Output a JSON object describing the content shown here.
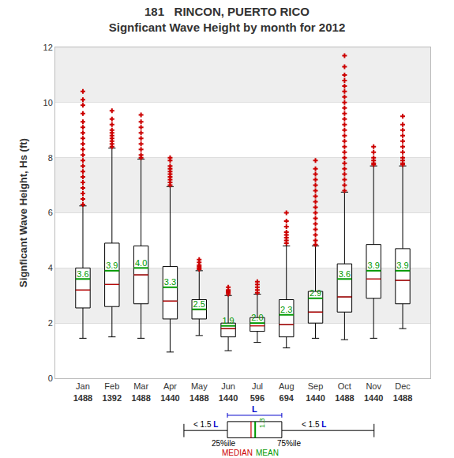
{
  "chart_data": {
    "type": "box",
    "title": "181   RINCON, PUERTO RICO",
    "subtitle": "Signficant Wave Height by month for 2012",
    "ylabel": "Signficant Wave Height, Hs (ft)",
    "categories": [
      "Jan",
      "Feb",
      "Mar",
      "Apr",
      "May",
      "Jun",
      "Jul",
      "Aug",
      "Sep",
      "Oct",
      "Nov",
      "Dec"
    ],
    "counts": [
      1488,
      1392,
      1488,
      1440,
      1488,
      1440,
      596,
      694,
      1440,
      1488,
      1440,
      1488
    ],
    "boxes": {
      "whisker_low": [
        1.45,
        1.5,
        1.45,
        0.95,
        1.55,
        1.0,
        1.3,
        1.1,
        1.45,
        1.4,
        1.45,
        1.8
      ],
      "q1": [
        2.55,
        2.6,
        2.7,
        2.15,
        2.15,
        1.5,
        1.7,
        1.5,
        2.0,
        2.4,
        2.9,
        2.7
      ],
      "median": [
        3.2,
        3.4,
        3.75,
        2.8,
        2.5,
        1.8,
        1.9,
        1.95,
        2.4,
        2.95,
        3.6,
        3.55
      ],
      "q3": [
        4.0,
        4.9,
        4.8,
        4.05,
        2.85,
        2.0,
        2.2,
        2.85,
        3.15,
        4.15,
        4.85,
        4.7
      ],
      "whisker_high": [
        6.25,
        8.35,
        7.95,
        6.95,
        3.9,
        3.0,
        3.05,
        4.8,
        4.8,
        6.75,
        7.7,
        7.7
      ],
      "mean": [
        3.6,
        3.9,
        4.0,
        3.3,
        2.5,
        1.9,
        2.0,
        2.3,
        2.9,
        3.6,
        3.9,
        3.9
      ],
      "value_labels": [
        "3.6",
        "3.9",
        "4.0",
        "3.3",
        "2.5",
        "1.9",
        "2.0",
        "2.3",
        "2.9",
        "3.6",
        "3.9",
        "3.9"
      ]
    },
    "outliers": [
      [
        6.3,
        6.5,
        6.7,
        6.9,
        7.1,
        7.3,
        7.5,
        7.7,
        7.9,
        8.1,
        8.3,
        8.5,
        8.7,
        8.9,
        9.1,
        9.3,
        9.6,
        9.9,
        10.1,
        10.4
      ],
      [
        8.4,
        8.5,
        8.6,
        8.7,
        8.8,
        8.9,
        9.0,
        9.2,
        9.4,
        9.7
      ],
      [
        8.0,
        8.1,
        8.3,
        8.5,
        8.7,
        8.9,
        9.1,
        9.3,
        9.55
      ],
      [
        7.0,
        7.1,
        7.2,
        7.3,
        7.4,
        7.5,
        7.6,
        7.7,
        7.9,
        8.0
      ],
      [
        3.95,
        4.0,
        4.05,
        4.1,
        4.2,
        4.3
      ],
      [
        3.05,
        3.1,
        3.15,
        3.2,
        3.3
      ],
      [
        3.1,
        3.2,
        3.3,
        3.4,
        3.5
      ],
      [
        4.9,
        5.0,
        5.1,
        5.2,
        5.3,
        5.5,
        5.7,
        6.0
      ],
      [
        4.85,
        5.0,
        5.2,
        5.4,
        5.6,
        5.8,
        6.0,
        6.2,
        6.4,
        6.6,
        6.8,
        7.0,
        7.2,
        7.4,
        7.6,
        7.9
      ],
      [
        6.8,
        7.0,
        7.2,
        7.4,
        7.6,
        7.8,
        8.0,
        8.2,
        8.4,
        8.6,
        8.8,
        9.0,
        9.2,
        9.4,
        9.6,
        9.8,
        10.0,
        10.2,
        10.4,
        10.6,
        10.8,
        11.0,
        11.3,
        11.7
      ],
      [
        7.75,
        7.8,
        7.9,
        8.0,
        8.2,
        8.4
      ],
      [
        7.75,
        7.8,
        7.9,
        8.0,
        8.2,
        8.4,
        8.6,
        8.8,
        9.0,
        9.2,
        9.5
      ]
    ],
    "ylim": [
      0,
      12
    ],
    "yticks": [
      0,
      2,
      4,
      6,
      8,
      10,
      12
    ],
    "grid": true,
    "data_labels": true,
    "marker": "cross",
    "key_diagram": {
      "iqr_label": "L",
      "whisker_label": "< 1.5 L",
      "q1_label": "25%ile",
      "q3_label": "75%ile",
      "median_label": "MEDIAN",
      "mean_label": "MEAN",
      "mean_value_label": "1.3"
    }
  }
}
